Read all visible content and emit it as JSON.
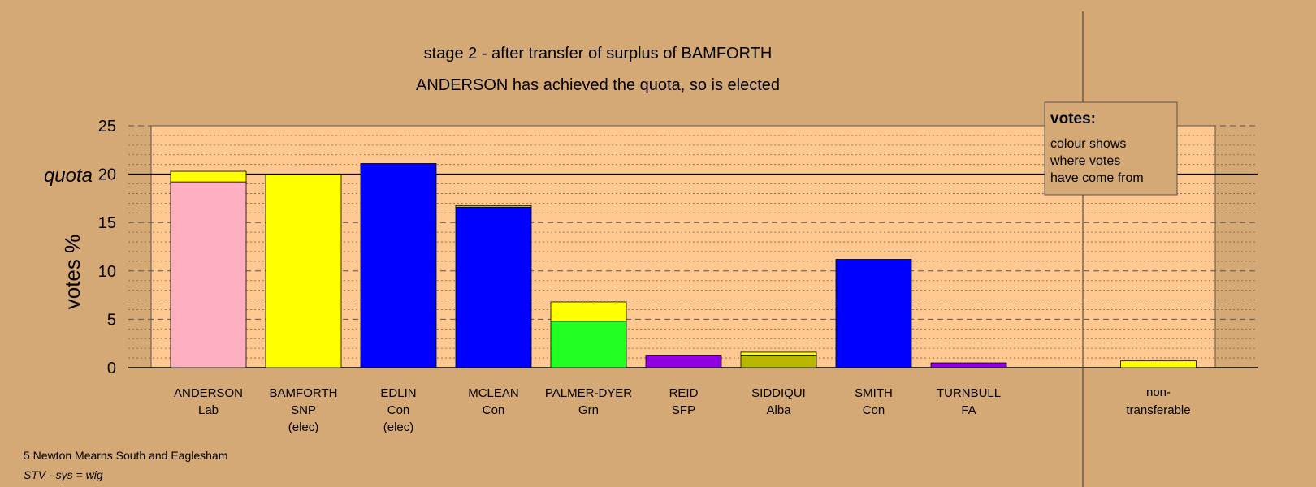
{
  "chart_data": {
    "type": "bar",
    "stacked": true,
    "title": "stage 2 - after transfer of surplus of BAMFORTH",
    "subtitle": "ANDERSON has achieved the quota, so is elected",
    "ylabel": "votes %",
    "ylim": [
      0,
      25
    ],
    "yticks": [
      0,
      5,
      10,
      15,
      20,
      25
    ],
    "quota": 20,
    "quota_label": "quota",
    "grid": true,
    "candidates": [
      {
        "name": "ANDERSON",
        "party": "Lab",
        "note": "",
        "segments": [
          {
            "value": 19.2,
            "color": "#ffb0c0"
          },
          {
            "value": 1.1,
            "color": "#ffff00"
          }
        ]
      },
      {
        "name": "BAMFORTH",
        "party": "SNP",
        "note": "(elec)",
        "segments": [
          {
            "value": 20.0,
            "color": "#ffff00"
          }
        ]
      },
      {
        "name": "EDLIN",
        "party": "Con",
        "note": "(elec)",
        "segments": [
          {
            "value": 21.1,
            "color": "#0000ff"
          }
        ]
      },
      {
        "name": "MCLEAN",
        "party": "Con",
        "note": "",
        "segments": [
          {
            "value": 16.6,
            "color": "#0000ff"
          },
          {
            "value": 0.15,
            "color": "#ffff00"
          }
        ]
      },
      {
        "name": "PALMER-DYER",
        "party": "Grn",
        "note": "",
        "segments": [
          {
            "value": 4.8,
            "color": "#22ff22"
          },
          {
            "value": 2.0,
            "color": "#ffff00"
          }
        ]
      },
      {
        "name": "REID",
        "party": "SFP",
        "note": "",
        "segments": [
          {
            "value": 1.3,
            "color": "#9000e0"
          }
        ]
      },
      {
        "name": "SIDDIQUI",
        "party": "Alba",
        "note": "",
        "segments": [
          {
            "value": 1.3,
            "color": "#b8b800"
          },
          {
            "value": 0.3,
            "color": "#ffff00"
          }
        ]
      },
      {
        "name": "SMITH",
        "party": "Con",
        "note": "",
        "segments": [
          {
            "value": 11.2,
            "color": "#0000ff"
          }
        ]
      },
      {
        "name": "TURNBULL",
        "party": "FA",
        "note": "",
        "segments": [
          {
            "value": 0.5,
            "color": "#9000e0"
          }
        ]
      }
    ],
    "nontransferable": {
      "label_line1": "non-",
      "label_line2": "transferable",
      "segments": [
        {
          "value": 0.7,
          "color": "#ffff00"
        }
      ]
    }
  },
  "legend": {
    "title": "votes:",
    "lines": [
      "colour shows",
      "where votes",
      "have come from"
    ]
  },
  "footer": {
    "ward": "5 Newton Mearns South and Eaglesham",
    "system": "STV - sys = wig"
  },
  "colors": {
    "page_background": "#d4a976",
    "plot_background": "#ffc890"
  }
}
